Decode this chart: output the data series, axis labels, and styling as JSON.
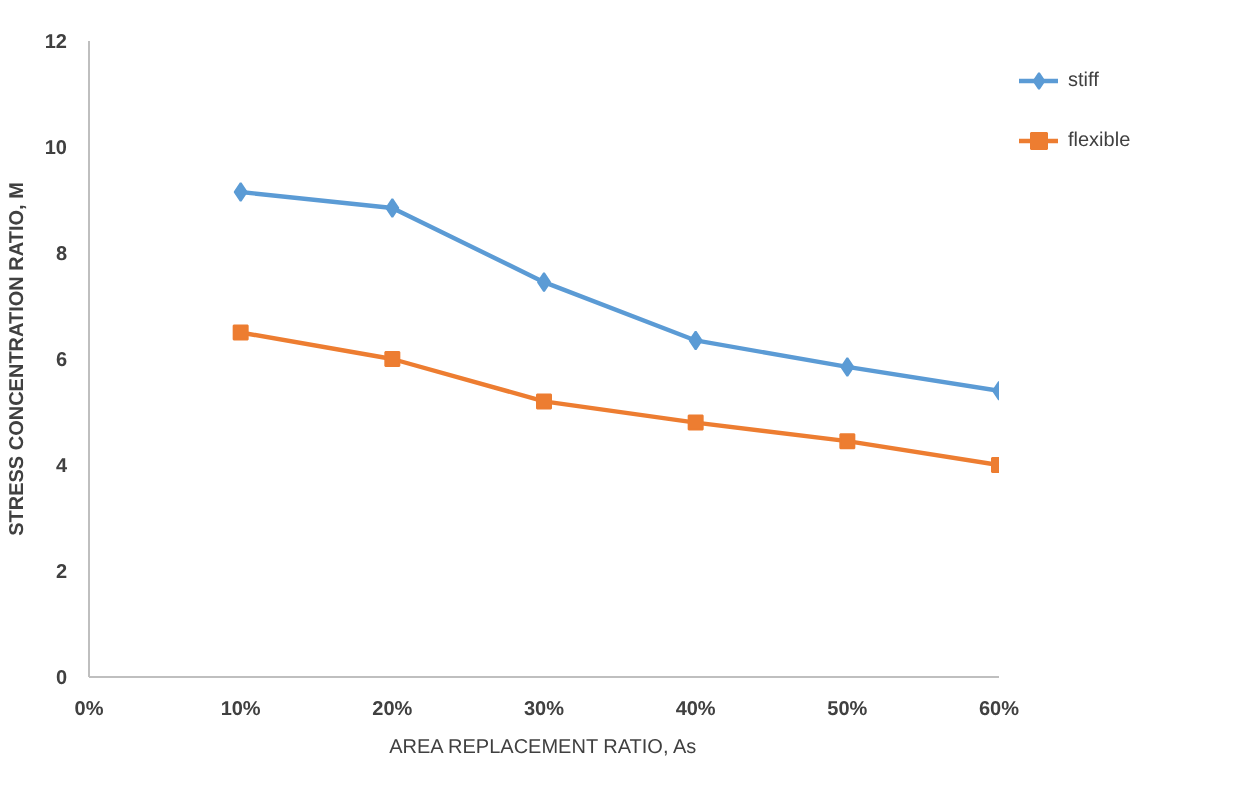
{
  "chart_data": {
    "type": "line",
    "xlabel": "AREA REPLACEMENT RATIO, As",
    "ylabel": "STRESS CONCENTRATION RATIO, M",
    "x": [
      10,
      20,
      30,
      40,
      50,
      60
    ],
    "series": [
      {
        "name": "stiff",
        "color": "#5b9bd5",
        "marker": "diamond",
        "values": [
          9.15,
          8.85,
          7.45,
          6.35,
          5.85,
          5.4
        ]
      },
      {
        "name": "flexible",
        "color": "#ed7d31",
        "marker": "square",
        "values": [
          6.5,
          6.0,
          5.2,
          4.8,
          4.45,
          4.0
        ]
      }
    ],
    "xlim": [
      0,
      60
    ],
    "ylim": [
      0,
      12
    ],
    "xticks": [
      {
        "value": 0,
        "label": "0%"
      },
      {
        "value": 10,
        "label": "10%"
      },
      {
        "value": 20,
        "label": "20%"
      },
      {
        "value": 30,
        "label": "30%"
      },
      {
        "value": 40,
        "label": "40%"
      },
      {
        "value": 50,
        "label": "50%"
      },
      {
        "value": 60,
        "label": "60%"
      }
    ],
    "yticks": [
      0,
      2,
      4,
      6,
      8,
      10,
      12
    ],
    "grid": false,
    "legend": "top right",
    "line_style": "solid"
  }
}
